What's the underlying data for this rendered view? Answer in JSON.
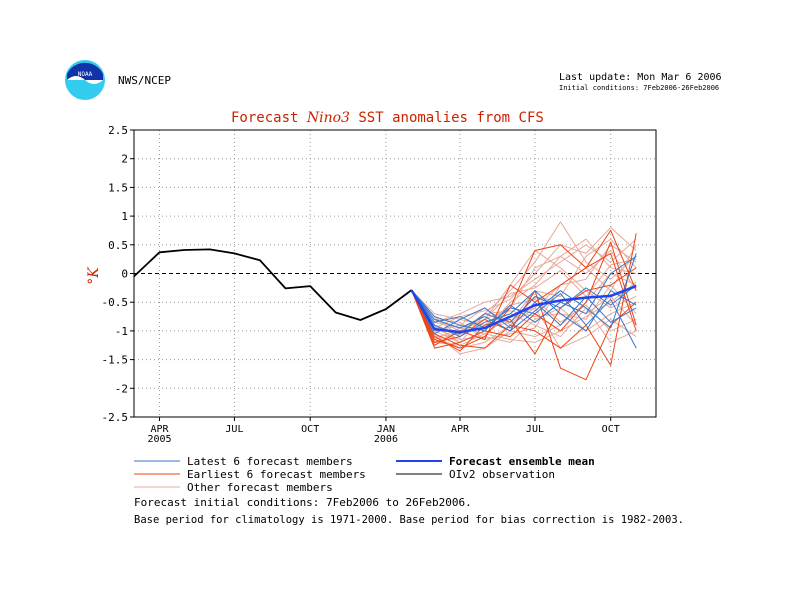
{
  "header": {
    "agency": "NWS/NCEP",
    "logo_text": "NOAA",
    "last_update": "Last update: Mon Mar 6 2006",
    "initial_conditions_short": "Initial conditions: 7Feb2006-26Feb2006"
  },
  "chart_data": {
    "type": "line",
    "title_parts": [
      "Forecast ",
      "Nino3",
      " SST anomalies from CFS"
    ],
    "ylabel": "°K",
    "ylim": [
      -2.5,
      2.5
    ],
    "yticks": [
      "2.5",
      "2",
      "1.5",
      "1",
      "0.5",
      "0",
      "-0.5",
      "-1",
      "-1.5",
      "-2",
      "-2.5"
    ],
    "x_start": "2005-03-01",
    "x_end": "2006-11-25",
    "xticks": [
      {
        "date": "2005-04-01",
        "label": "APR",
        "sub": "2005"
      },
      {
        "date": "2005-07-01",
        "label": "JUL",
        "sub": ""
      },
      {
        "date": "2005-10-01",
        "label": "OCT",
        "sub": ""
      },
      {
        "date": "2006-01-01",
        "label": "JAN",
        "sub": "2006"
      },
      {
        "date": "2006-04-01",
        "label": "APR",
        "sub": ""
      },
      {
        "date": "2006-07-01",
        "label": "JUL",
        "sub": ""
      },
      {
        "date": "2006-10-01",
        "label": "OCT",
        "sub": ""
      }
    ],
    "grid": true,
    "zero_line": "dashed",
    "observation": {
      "name": "OIv2 observation",
      "color": "#000000",
      "x": [
        "2005-03-01",
        "2005-04-01",
        "2005-05-01",
        "2005-06-01",
        "2005-07-01",
        "2005-08-01",
        "2005-09-01",
        "2005-10-01",
        "2005-11-01",
        "2005-12-01",
        "2006-01-01",
        "2006-02-01"
      ],
      "y": [
        -0.05,
        0.37,
        0.41,
        0.42,
        0.35,
        0.23,
        -0.26,
        -0.22,
        -0.68,
        -0.81,
        -0.62,
        -0.29
      ]
    },
    "forecast_x": [
      "2006-02-01",
      "2006-03-01",
      "2006-04-01",
      "2006-05-01",
      "2006-06-01",
      "2006-07-01",
      "2006-08-01",
      "2006-09-01",
      "2006-10-01",
      "2006-11-01"
    ],
    "ensemble_mean": {
      "name": "Forecast ensemble mean",
      "color": "#2244ee",
      "y": [
        -0.29,
        -0.97,
        -1.02,
        -0.95,
        -0.75,
        -0.55,
        -0.47,
        -0.42,
        -0.39,
        -0.22
      ]
    },
    "latest_members": {
      "name": "Latest 6 forecast members",
      "color": "#3377cc",
      "series": [
        [
          -0.29,
          -0.85,
          -0.75,
          -0.95,
          -0.6,
          -0.7,
          -0.35,
          -0.9,
          -0.45,
          -1.3
        ],
        [
          -0.29,
          -0.95,
          -1.05,
          -0.7,
          -0.85,
          -0.4,
          -0.6,
          -0.25,
          -0.55,
          -0.2
        ],
        [
          -0.29,
          -0.75,
          -0.9,
          -1.0,
          -0.55,
          -0.85,
          -0.5,
          -0.7,
          0.0,
          0.3
        ],
        [
          -0.29,
          -1.05,
          -0.8,
          -0.6,
          -0.95,
          -0.5,
          -0.9,
          -0.4,
          -0.85,
          -0.6
        ],
        [
          -0.29,
          -0.9,
          -1.1,
          -0.85,
          -0.7,
          -0.3,
          -0.7,
          -1.0,
          -0.3,
          -0.55
        ],
        [
          -0.29,
          -0.8,
          -0.95,
          -0.75,
          -1.0,
          -0.65,
          -0.3,
          -0.6,
          -0.95,
          0.35
        ]
      ]
    },
    "earliest_members": {
      "name": "Earliest 6 forecast members",
      "color": "#ee4411",
      "series": [
        [
          -0.29,
          -1.15,
          -1.3,
          -1.1,
          -0.6,
          0.4,
          0.5,
          0.1,
          0.75,
          -0.3
        ],
        [
          -0.29,
          -1.2,
          -1.1,
          -0.8,
          -1.0,
          -0.3,
          -1.65,
          -1.85,
          -0.9,
          -0.5
        ],
        [
          -0.29,
          -1.05,
          -1.25,
          -1.3,
          -0.9,
          -1.0,
          -1.3,
          -0.9,
          -1.6,
          0.7
        ],
        [
          -0.29,
          -1.25,
          -1.0,
          -1.15,
          -0.2,
          -0.5,
          -0.2,
          0.1,
          0.35,
          -1.0
        ],
        [
          -0.29,
          -1.1,
          -1.35,
          -0.9,
          -0.8,
          -1.4,
          -0.6,
          -0.3,
          -0.2,
          0.1
        ],
        [
          -0.29,
          -1.3,
          -1.2,
          -1.0,
          -1.1,
          -0.7,
          -1.0,
          -0.5,
          0.55,
          -0.9
        ]
      ]
    },
    "other_members": {
      "name": "Other forecast members",
      "color": "#e8a89a",
      "series": [
        [
          -0.29,
          -0.8,
          -1.0,
          -0.7,
          -0.3,
          0.2,
          0.9,
          0.2,
          -0.1,
          0.3
        ],
        [
          -0.29,
          -0.9,
          -1.2,
          -1.0,
          -0.5,
          -0.2,
          0.3,
          0.6,
          0.1,
          0.0
        ],
        [
          -0.29,
          -1.0,
          -0.9,
          -0.6,
          -0.9,
          -0.6,
          -0.2,
          -0.1,
          0.5,
          0.2
        ],
        [
          -0.29,
          -1.1,
          -1.3,
          -1.2,
          -0.9,
          -0.4,
          -0.5,
          -0.7,
          -0.4,
          -0.9
        ],
        [
          -0.29,
          -0.7,
          -0.8,
          -0.9,
          -0.7,
          -0.9,
          -1.1,
          -0.6,
          -1.2,
          -1.0
        ],
        [
          -0.29,
          -1.2,
          -1.0,
          -0.8,
          -0.6,
          0.1,
          0.3,
          0.0,
          0.4,
          -0.3
        ],
        [
          -0.29,
          -0.95,
          -1.15,
          -1.1,
          -1.2,
          -0.8,
          -0.6,
          -1.0,
          -0.7,
          -0.5
        ],
        [
          -0.29,
          -0.85,
          -0.7,
          -0.5,
          -0.4,
          -0.1,
          0.2,
          0.5,
          0.2,
          0.6
        ],
        [
          -0.29,
          -1.05,
          -1.4,
          -1.3,
          -1.0,
          -1.1,
          -0.9,
          -0.5,
          0.0,
          -0.2
        ],
        [
          -0.29,
          -0.75,
          -1.1,
          -0.8,
          -0.2,
          0.4,
          0.1,
          -0.3,
          -0.6,
          -0.4
        ],
        [
          -0.29,
          -1.15,
          -0.95,
          -1.05,
          -0.75,
          -0.6,
          -1.3,
          -1.1,
          -0.8,
          -1.1
        ],
        [
          -0.29,
          -0.9,
          -1.05,
          -0.95,
          -0.85,
          -0.3,
          -0.4,
          0.3,
          0.6,
          0.1
        ],
        [
          -0.29,
          -1.0,
          -1.2,
          -0.7,
          -0.65,
          -0.75,
          -0.7,
          -0.8,
          -0.2,
          -0.7
        ],
        [
          -0.29,
          -0.8,
          -0.85,
          -1.15,
          -1.05,
          -0.95,
          -0.2,
          0.1,
          -0.3,
          0.5
        ],
        [
          -0.29,
          -1.1,
          -1.05,
          -0.9,
          -0.55,
          -0.45,
          -0.85,
          -0.55,
          -1.0,
          -0.8
        ],
        [
          -0.29,
          -0.95,
          -0.75,
          -0.65,
          -0.45,
          0.0,
          0.5,
          0.35,
          0.8,
          0.4
        ],
        [
          -0.29,
          -1.2,
          -1.25,
          -1.05,
          -1.15,
          -1.2,
          -1.0,
          -0.75,
          -0.5,
          -0.15
        ],
        [
          -0.29,
          -0.85,
          -0.95,
          -0.8,
          -0.35,
          -0.25,
          0.05,
          -0.4,
          0.15,
          0.25
        ]
      ]
    }
  },
  "legend": {
    "latest": "Latest 6 forecast members",
    "earliest": "Earliest 6 forecast members",
    "other": "Other forecast members",
    "mean": "Forecast ensemble mean",
    "obs": "OIv2 observation"
  },
  "footer": {
    "line1": "Forecast initial conditions: 7Feb2006 to 26Feb2006.",
    "line2": "Base period for climatology is 1971-2000. Base period for bias correction is 1982-2003."
  }
}
